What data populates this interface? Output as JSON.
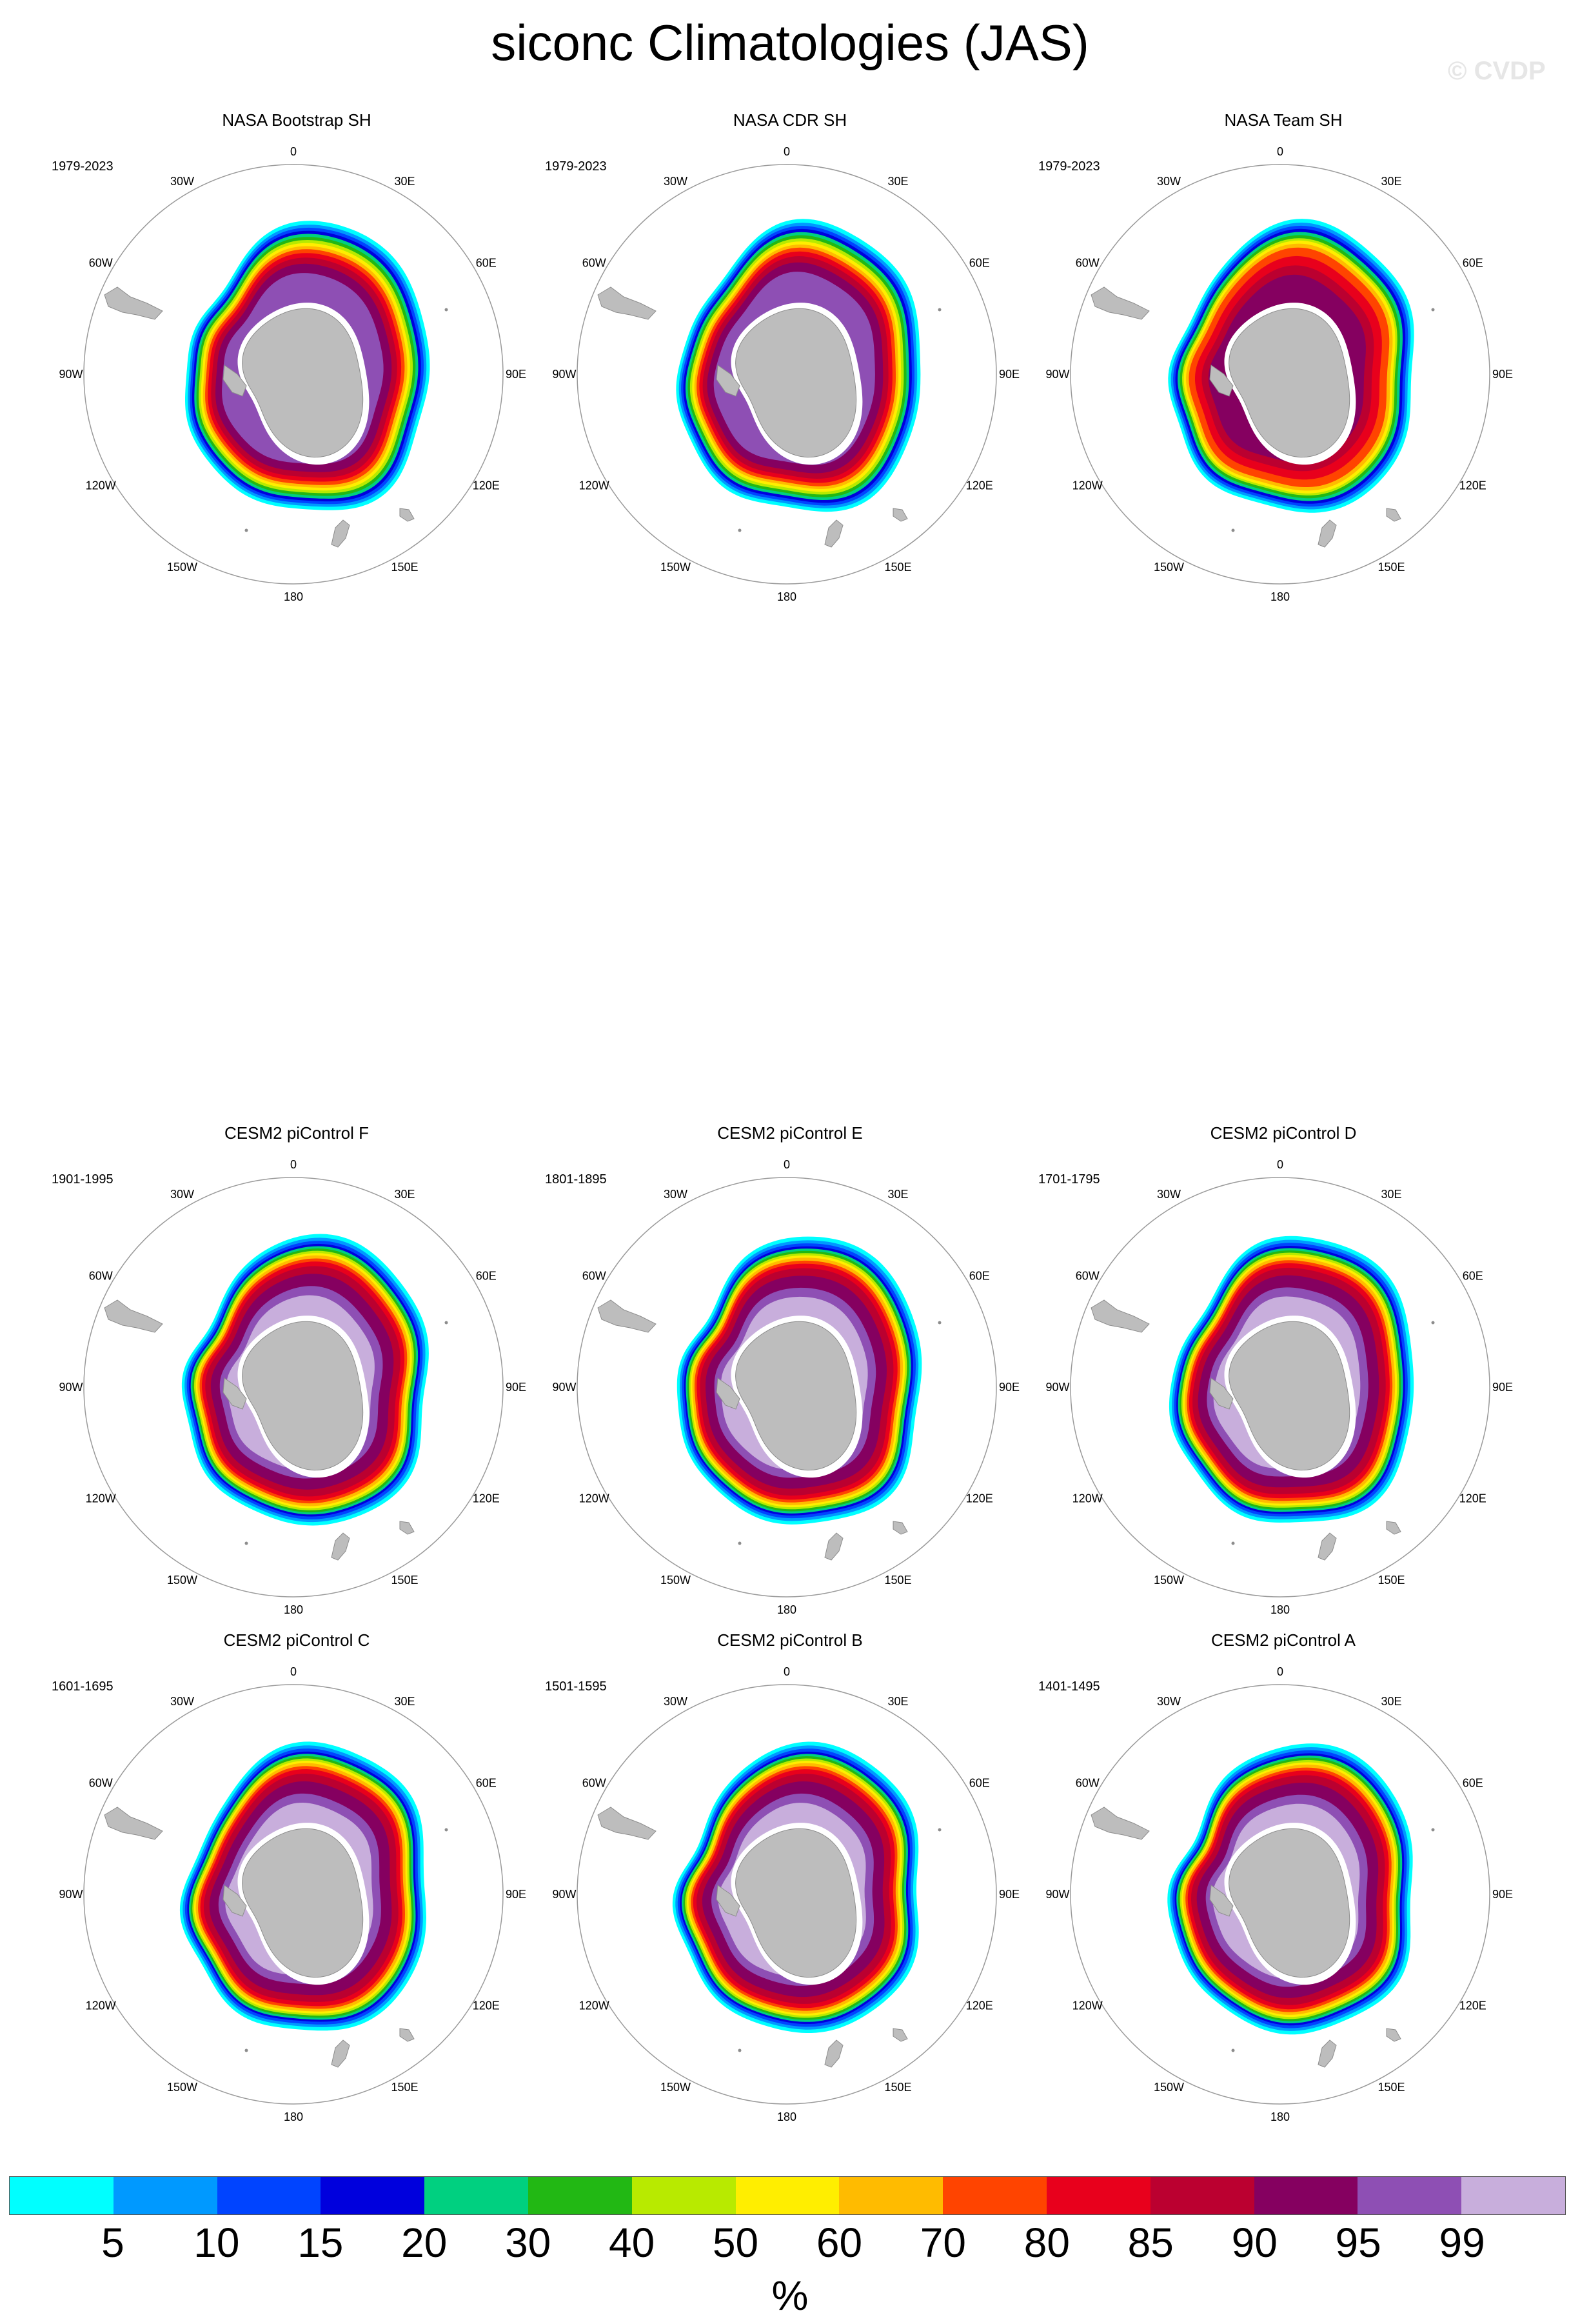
{
  "title": "siconc Climatologies (JAS)",
  "watermark": "© CVDP",
  "map_labels": {
    "lon_0": "0",
    "lon_30e": "30E",
    "lon_60e": "60E",
    "lon_90e": "90E",
    "lon_120e": "120E",
    "lon_150e": "150E",
    "lon_180": "180",
    "lon_150w": "150W",
    "lon_120w": "120W",
    "lon_90w": "90W",
    "lon_60w": "60W",
    "lon_30w": "30W"
  },
  "colors": {
    "land": "#bdbdbd",
    "land_edge": "#8c8c8c",
    "grid": "#9a9a9a"
  },
  "chart_data": {
    "type": "heatmap",
    "projection": "south-polar-stereographic",
    "variable": "siconc",
    "season": "JAS",
    "units": "%",
    "colorbar": {
      "levels": [
        "5",
        "10",
        "15",
        "20",
        "30",
        "40",
        "50",
        "60",
        "70",
        "80",
        "85",
        "90",
        "95",
        "99"
      ],
      "colors": [
        "#00ffff",
        "#0099ff",
        "#0044ff",
        "#0000dd",
        "#00d080",
        "#22b814",
        "#b8ea00",
        "#ffee00",
        "#ffbb00",
        "#ff4400",
        "#e8001c",
        "#bb0030",
        "#850060",
        "#8e4fb4",
        "#c8aedc"
      ]
    },
    "panels": [
      {
        "title": "NASA Bootstrap SH",
        "years": "1979-2023",
        "style": "obs-bootstrap"
      },
      {
        "title": "NASA CDR SH",
        "years": "1979-2023",
        "style": "obs-cdr"
      },
      {
        "title": "NASA Team SH",
        "years": "1979-2023",
        "style": "obs-team"
      },
      {
        "title": "CESM2 piControl F",
        "years": "1901-1995",
        "style": "model"
      },
      {
        "title": "CESM2 piControl E",
        "years": "1801-1895",
        "style": "model"
      },
      {
        "title": "CESM2 piControl D",
        "years": "1701-1795",
        "style": "model"
      },
      {
        "title": "CESM2 piControl C",
        "years": "1601-1695",
        "style": "model"
      },
      {
        "title": "CESM2 piControl B",
        "years": "1501-1595",
        "style": "model"
      },
      {
        "title": "CESM2 piControl A",
        "years": "1401-1495",
        "style": "model"
      }
    ]
  }
}
